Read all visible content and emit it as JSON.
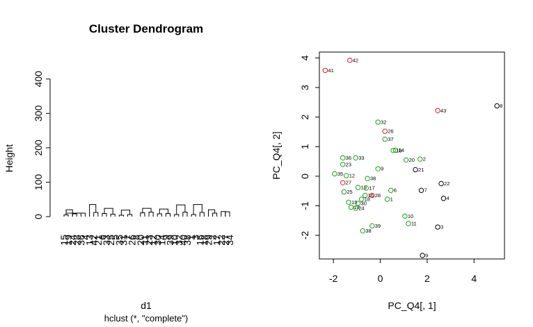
{
  "colors": {
    "axis": "#000000",
    "red": "#e3181d",
    "green": "#19a319",
    "black": "#000000"
  },
  "chart_data": [
    {
      "type": "dendrogram",
      "title": "Cluster Dendrogram",
      "ylabel": "Height",
      "xlabel": "d1",
      "sublabel": "hclust (*, \"complete\")",
      "ylim": [
        0,
        450
      ],
      "yticks": [
        0,
        100,
        200,
        300,
        400
      ],
      "leaves": [
        "15",
        "19",
        "24",
        "28",
        "36",
        "4",
        "13",
        "42",
        "21",
        "6",
        "33",
        "25",
        "5",
        "35",
        "31",
        "7",
        "26",
        "8",
        "20",
        "11",
        "23",
        "12",
        "30",
        "14",
        "9",
        "39",
        "10",
        "32",
        "40",
        "38",
        "1",
        "3",
        "16",
        "18",
        "29",
        "2",
        "17",
        "22",
        "27",
        "34"
      ],
      "merges": [
        [
          -1,
          -2,
          5
        ],
        [
          -3,
          -4,
          8
        ],
        [
          -5,
          -6,
          10
        ],
        [
          -8,
          -9,
          12
        ],
        [
          -10,
          -11,
          9
        ],
        [
          -12,
          -13,
          7
        ],
        [
          -14,
          -15,
          4
        ],
        [
          -16,
          -17,
          6
        ],
        [
          -19,
          -20,
          11
        ],
        [
          -21,
          -22,
          13
        ],
        [
          -23,
          -24,
          8
        ],
        [
          -25,
          -26,
          9
        ],
        [
          -27,
          -28,
          6
        ],
        [
          -29,
          -30,
          13
        ],
        [
          -31,
          -32,
          6
        ],
        [
          -33,
          -34,
          12
        ],
        [
          -36,
          -37,
          10
        ],
        [
          -38,
          -39,
          15
        ],
        [
          -40,
          -39,
          14
        ],
        [
          1,
          -3,
          20
        ],
        [
          2,
          3,
          3
        ],
        [
          21,
          1,
          3
        ],
        [
          4,
          -7,
          35
        ],
        [
          5,
          6,
          24
        ],
        [
          7,
          8,
          19
        ],
        [
          9,
          10,
          24
        ],
        [
          11,
          12,
          22
        ],
        [
          13,
          14,
          34
        ],
        [
          15,
          16,
          35
        ],
        [
          17,
          -35,
          20
        ]
      ]
    },
    {
      "type": "scatter",
      "xlabel": "PC_Q4[, 1]",
      "ylabel": "PC_Q4[, 2]",
      "xlim": [
        -2.6,
        5.3
      ],
      "ylim": [
        -2.8,
        4.2
      ],
      "xticks": [
        -2,
        0,
        2,
        4
      ],
      "yticks": [
        -2,
        -1,
        0,
        1,
        2,
        3,
        4
      ],
      "points": [
        {
          "label": "41",
          "x": -2.35,
          "y": 3.58,
          "group": "red"
        },
        {
          "label": "42",
          "x": -1.3,
          "y": 3.92,
          "group": "red"
        },
        {
          "label": "43",
          "x": 2.45,
          "y": 2.22,
          "group": "red"
        },
        {
          "label": "26",
          "x": 0.2,
          "y": 1.52,
          "group": "red"
        },
        {
          "label": "27",
          "x": -1.6,
          "y": -0.22,
          "group": "red"
        },
        {
          "label": "28",
          "x": -0.35,
          "y": -0.65,
          "group": "red"
        },
        {
          "label": "8",
          "x": 4.98,
          "y": 2.38,
          "group": "black"
        },
        {
          "label": "21",
          "x": 1.5,
          "y": 0.22,
          "group": "black"
        },
        {
          "label": "22",
          "x": 2.6,
          "y": -0.25,
          "group": "black"
        },
        {
          "label": "7",
          "x": 1.75,
          "y": -0.48,
          "group": "black"
        },
        {
          "label": "4",
          "x": 2.7,
          "y": -0.75,
          "group": "black"
        },
        {
          "label": "3",
          "x": 2.45,
          "y": -1.72,
          "group": "black"
        },
        {
          "label": "9",
          "x": 1.8,
          "y": -2.68,
          "group": "black"
        },
        {
          "label": "32",
          "x": -0.1,
          "y": 1.83,
          "group": "green"
        },
        {
          "label": "37",
          "x": 0.2,
          "y": 1.25,
          "group": "green"
        },
        {
          "label": "14",
          "x": 0.65,
          "y": 0.88,
          "group": "green"
        },
        {
          "label": "18",
          "x": 0.55,
          "y": 0.87,
          "group": "green"
        },
        {
          "label": "20",
          "x": 1.1,
          "y": 0.55,
          "group": "green"
        },
        {
          "label": "2",
          "x": 1.7,
          "y": 0.58,
          "group": "green"
        },
        {
          "label": "36",
          "x": -1.6,
          "y": 0.62,
          "group": "green"
        },
        {
          "label": "33",
          "x": -1.05,
          "y": 0.62,
          "group": "green"
        },
        {
          "label": "23",
          "x": -1.6,
          "y": 0.4,
          "group": "green"
        },
        {
          "label": "9",
          "x": -0.1,
          "y": 0.25,
          "group": "green"
        },
        {
          "label": "35",
          "x": -1.95,
          "y": 0.08,
          "group": "green"
        },
        {
          "label": "12",
          "x": -1.45,
          "y": 0.02,
          "group": "green"
        },
        {
          "label": "38",
          "x": -0.55,
          "y": -0.08,
          "group": "green"
        },
        {
          "label": "19",
          "x": -0.95,
          "y": -0.38,
          "group": "green"
        },
        {
          "label": "17",
          "x": -0.6,
          "y": -0.4,
          "group": "green"
        },
        {
          "label": "6",
          "x": 0.45,
          "y": -0.48,
          "group": "green"
        },
        {
          "label": "25",
          "x": -1.55,
          "y": -0.53,
          "group": "green"
        },
        {
          "label": "16",
          "x": -0.65,
          "y": -0.65,
          "group": "green"
        },
        {
          "label": "18",
          "x": -0.8,
          "y": -0.78,
          "group": "green"
        },
        {
          "label": "1",
          "x": 0.3,
          "y": -0.78,
          "group": "green"
        },
        {
          "label": "15",
          "x": -1.35,
          "y": -0.88,
          "group": "green"
        },
        {
          "label": "30",
          "x": -0.95,
          "y": -0.92,
          "group": "green"
        },
        {
          "label": "13",
          "x": -1.25,
          "y": -1.05,
          "group": "green"
        },
        {
          "label": "24",
          "x": -1.05,
          "y": -1.08,
          "group": "green"
        },
        {
          "label": "10",
          "x": 1.05,
          "y": -1.35,
          "group": "green"
        },
        {
          "label": "11",
          "x": 1.2,
          "y": -1.6,
          "group": "green"
        },
        {
          "label": "39",
          "x": -0.35,
          "y": -1.68,
          "group": "green"
        },
        {
          "label": "38",
          "x": -0.75,
          "y": -1.85,
          "group": "green"
        }
      ]
    }
  ]
}
